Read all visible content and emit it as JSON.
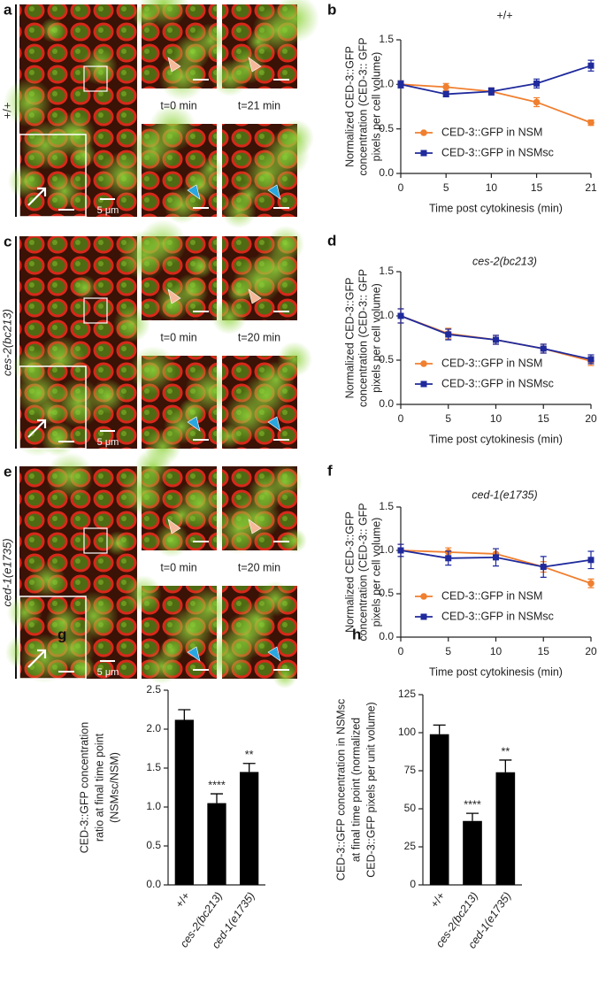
{
  "image_panels": [
    {
      "panel": "a",
      "genotype": "+/+",
      "times": [
        "t=0 min",
        "t=21 min"
      ],
      "scale": "5 μm"
    },
    {
      "panel": "c",
      "genotype": "ces-2(bc213)",
      "times": [
        "t=0 min",
        "t=20 min"
      ],
      "scale": "5 μm"
    },
    {
      "panel": "e",
      "genotype": "ced-1(e1735)",
      "times": [
        "t=0 min",
        "t=20 min"
      ],
      "scale": "5 μm"
    }
  ],
  "chart_data": [
    {
      "type": "line",
      "panel": "b",
      "title": "+/+",
      "x_label": "Time post cytokinesis (min)",
      "y_label": [
        "Normalized CED-3::GFP",
        "concentration (CED-3:: GFP",
        "pixels per cell volume)"
      ],
      "x": [
        0,
        5,
        10,
        15,
        21
      ],
      "xlim": [
        0,
        21
      ],
      "xticks": [
        0,
        5,
        10,
        15,
        21
      ],
      "ylim": [
        0,
        1.5
      ],
      "yticks": [
        {
          "value": 0,
          "label": "0.0"
        },
        0.5,
        {
          "value": 1,
          "label": "1.0"
        },
        1.5
      ],
      "legend": "lower left",
      "series": [
        {
          "name": "CED-3::GFP in NSM",
          "color": "#f07f2f",
          "marker": "circle",
          "values": [
            1.0,
            0.97,
            0.92,
            0.8,
            0.57
          ],
          "errors": [
            0.04,
            0.04,
            0.04,
            0.05,
            0.03
          ]
        },
        {
          "name": "CED-3::GFP in NSMsc",
          "color": "#1f2a9c",
          "marker": "square",
          "values": [
            1.0,
            0.89,
            0.92,
            1.01,
            1.21
          ],
          "errors": [
            0.04,
            0.03,
            0.04,
            0.05,
            0.06
          ]
        }
      ]
    },
    {
      "type": "line",
      "panel": "d",
      "title": "ces-2(bc213)",
      "x_label": "Time post cytokinesis (min)",
      "y_label": [
        "Normalized CED-3::GFP",
        "concentration (CED-3:: GFP",
        "pixels per cell volume)"
      ],
      "x": [
        0,
        5,
        10,
        15,
        20
      ],
      "xlim": [
        0,
        20
      ],
      "xticks": [
        0,
        5,
        10,
        15,
        20
      ],
      "ylim": [
        0,
        1.5
      ],
      "yticks": [
        {
          "value": 0,
          "label": "0.0"
        },
        0.5,
        {
          "value": 1,
          "label": "1.0"
        },
        1.5
      ],
      "legend": "lower left",
      "series": [
        {
          "name": "CED-3::GFP in NSM",
          "color": "#f07f2f",
          "marker": "circle",
          "values": [
            1.0,
            0.8,
            0.73,
            0.63,
            0.49
          ],
          "errors": [
            0.08,
            0.06,
            0.05,
            0.05,
            0.05
          ]
        },
        {
          "name": "CED-3::GFP in NSMsc",
          "color": "#1f2a9c",
          "marker": "square",
          "values": [
            1.0,
            0.79,
            0.73,
            0.63,
            0.51
          ],
          "errors": [
            0.08,
            0.06,
            0.05,
            0.05,
            0.05
          ]
        }
      ]
    },
    {
      "type": "line",
      "panel": "f",
      "title": "ced-1(e1735)",
      "x_label": "Time post cytokinesis (min)",
      "y_label": [
        "Normalized CED-3::GFP",
        "concentration (CED-3:: GFP",
        "pixels per cell volume)"
      ],
      "x": [
        0,
        5,
        10,
        15,
        20
      ],
      "xlim": [
        0,
        20
      ],
      "xticks": [
        0,
        5,
        10,
        15,
        20
      ],
      "ylim": [
        0,
        1.5
      ],
      "yticks": [
        {
          "value": 0,
          "label": "0.0"
        },
        0.5,
        {
          "value": 1,
          "label": "1.0"
        },
        1.5
      ],
      "legend": "lower left",
      "series": [
        {
          "name": "CED-3::GFP in NSM",
          "color": "#f07f2f",
          "marker": "circle",
          "values": [
            1.0,
            0.98,
            0.96,
            0.81,
            0.62
          ],
          "errors": [
            0.07,
            0.05,
            0.06,
            0.06,
            0.05
          ]
        },
        {
          "name": "CED-3::GFP in NSMsc",
          "color": "#1f2a9c",
          "marker": "square",
          "values": [
            1.0,
            0.91,
            0.92,
            0.81,
            0.89
          ],
          "errors": [
            0.07,
            0.08,
            0.1,
            0.12,
            0.1
          ]
        }
      ]
    },
    {
      "type": "bar",
      "panel": "g",
      "y_label": [
        "CED-3::GFP concentration",
        "ratio at final time point",
        "(NSMsc/NSM)"
      ],
      "categories": [
        "+/+",
        "ces-2(bc213)",
        "ced-1(e1735)"
      ],
      "values": [
        2.12,
        1.05,
        1.45
      ],
      "errors": [
        0.13,
        0.12,
        0.11
      ],
      "significance": [
        null,
        "****",
        "**"
      ],
      "color": "#000000",
      "ylim": [
        0,
        2.5
      ],
      "yticks": [
        {
          "value": 0,
          "label": "0.0"
        },
        0.5,
        {
          "value": 1,
          "label": "1.0"
        },
        1.5,
        {
          "value": 2,
          "label": "2.0"
        },
        2.5
      ]
    },
    {
      "type": "bar",
      "panel": "h",
      "y_label": [
        "CED-3::GFP concentration in NSMsc",
        "at final time point (normalized",
        "CED-3::GFP pixels per unit volume)"
      ],
      "categories": [
        "+/+",
        "ces-2(bc213)",
        "ced-1(e1735)"
      ],
      "values": [
        99,
        42,
        74
      ],
      "errors": [
        6,
        5,
        8
      ],
      "significance": [
        null,
        "****",
        "**"
      ],
      "color": "#000000",
      "ylim": [
        0,
        125
      ],
      "yticks": [
        0,
        25,
        50,
        75,
        100,
        125
      ]
    }
  ]
}
